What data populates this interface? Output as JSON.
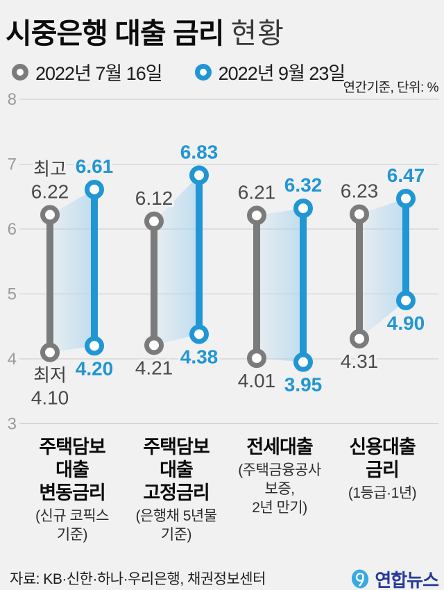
{
  "header": {
    "title_main": "시중은행 대출 금리",
    "title_sub": "현황",
    "unit_note": "연간기준, 단위: %"
  },
  "chart_data": {
    "type": "dumbbell-range",
    "title": "시중은행 대출 금리 현황",
    "unit": "%",
    "ylim": [
      3,
      8
    ],
    "yticks": [
      8,
      7,
      6,
      5,
      4,
      3
    ],
    "grid": true,
    "legend_position": "top",
    "categories": [
      {
        "name_lines": [
          "주택담보",
          "대출",
          "변동금리"
        ],
        "sub_lines": [
          "(신규 코픽스",
          "기준)"
        ]
      },
      {
        "name_lines": [
          "주택담보",
          "대출",
          "고정금리"
        ],
        "sub_lines": [
          "(은행채 5년물",
          "기준)"
        ]
      },
      {
        "name_lines": [
          "전세대출"
        ],
        "sub_lines": [
          "(주택금융공사",
          "보증,",
          "2년 만기)"
        ]
      },
      {
        "name_lines": [
          "신용대출",
          "금리"
        ],
        "sub_lines": [
          "(1등급·1년)"
        ]
      }
    ],
    "series": [
      {
        "name": "2022년 7월 16일",
        "role": "previous",
        "color": "#7b7b7b",
        "values": [
          {
            "max": 6.22,
            "min": 4.1
          },
          {
            "max": 6.12,
            "min": 4.21
          },
          {
            "max": 6.21,
            "min": 4.01
          },
          {
            "max": 6.23,
            "min": 4.31
          }
        ]
      },
      {
        "name": "2022년 9월 23일",
        "role": "current",
        "color": "#2196d4",
        "values": [
          {
            "max": 6.61,
            "min": 4.2
          },
          {
            "max": 6.83,
            "min": 4.38
          },
          {
            "max": 6.32,
            "min": 3.95
          },
          {
            "max": 6.47,
            "min": 4.9
          }
        ]
      }
    ],
    "annotations": {
      "max_label": "최고",
      "min_label": "최저"
    }
  },
  "colors": {
    "background": "#f1f1f1",
    "previous": "#7b7b7b",
    "current": "#2196d4",
    "grid": "#c9c9c9",
    "axis_text": "#9b9b9b",
    "value_text_previous": "#4a4a4a",
    "band_fill": "#a8d3ee",
    "logo_blue": "#28399c",
    "logo_icon_blue": "#35aae3"
  },
  "footer": {
    "source": "자료: KB·신한·하나·우리은행, 채권정보센터",
    "logo_text": "연합뉴스"
  }
}
